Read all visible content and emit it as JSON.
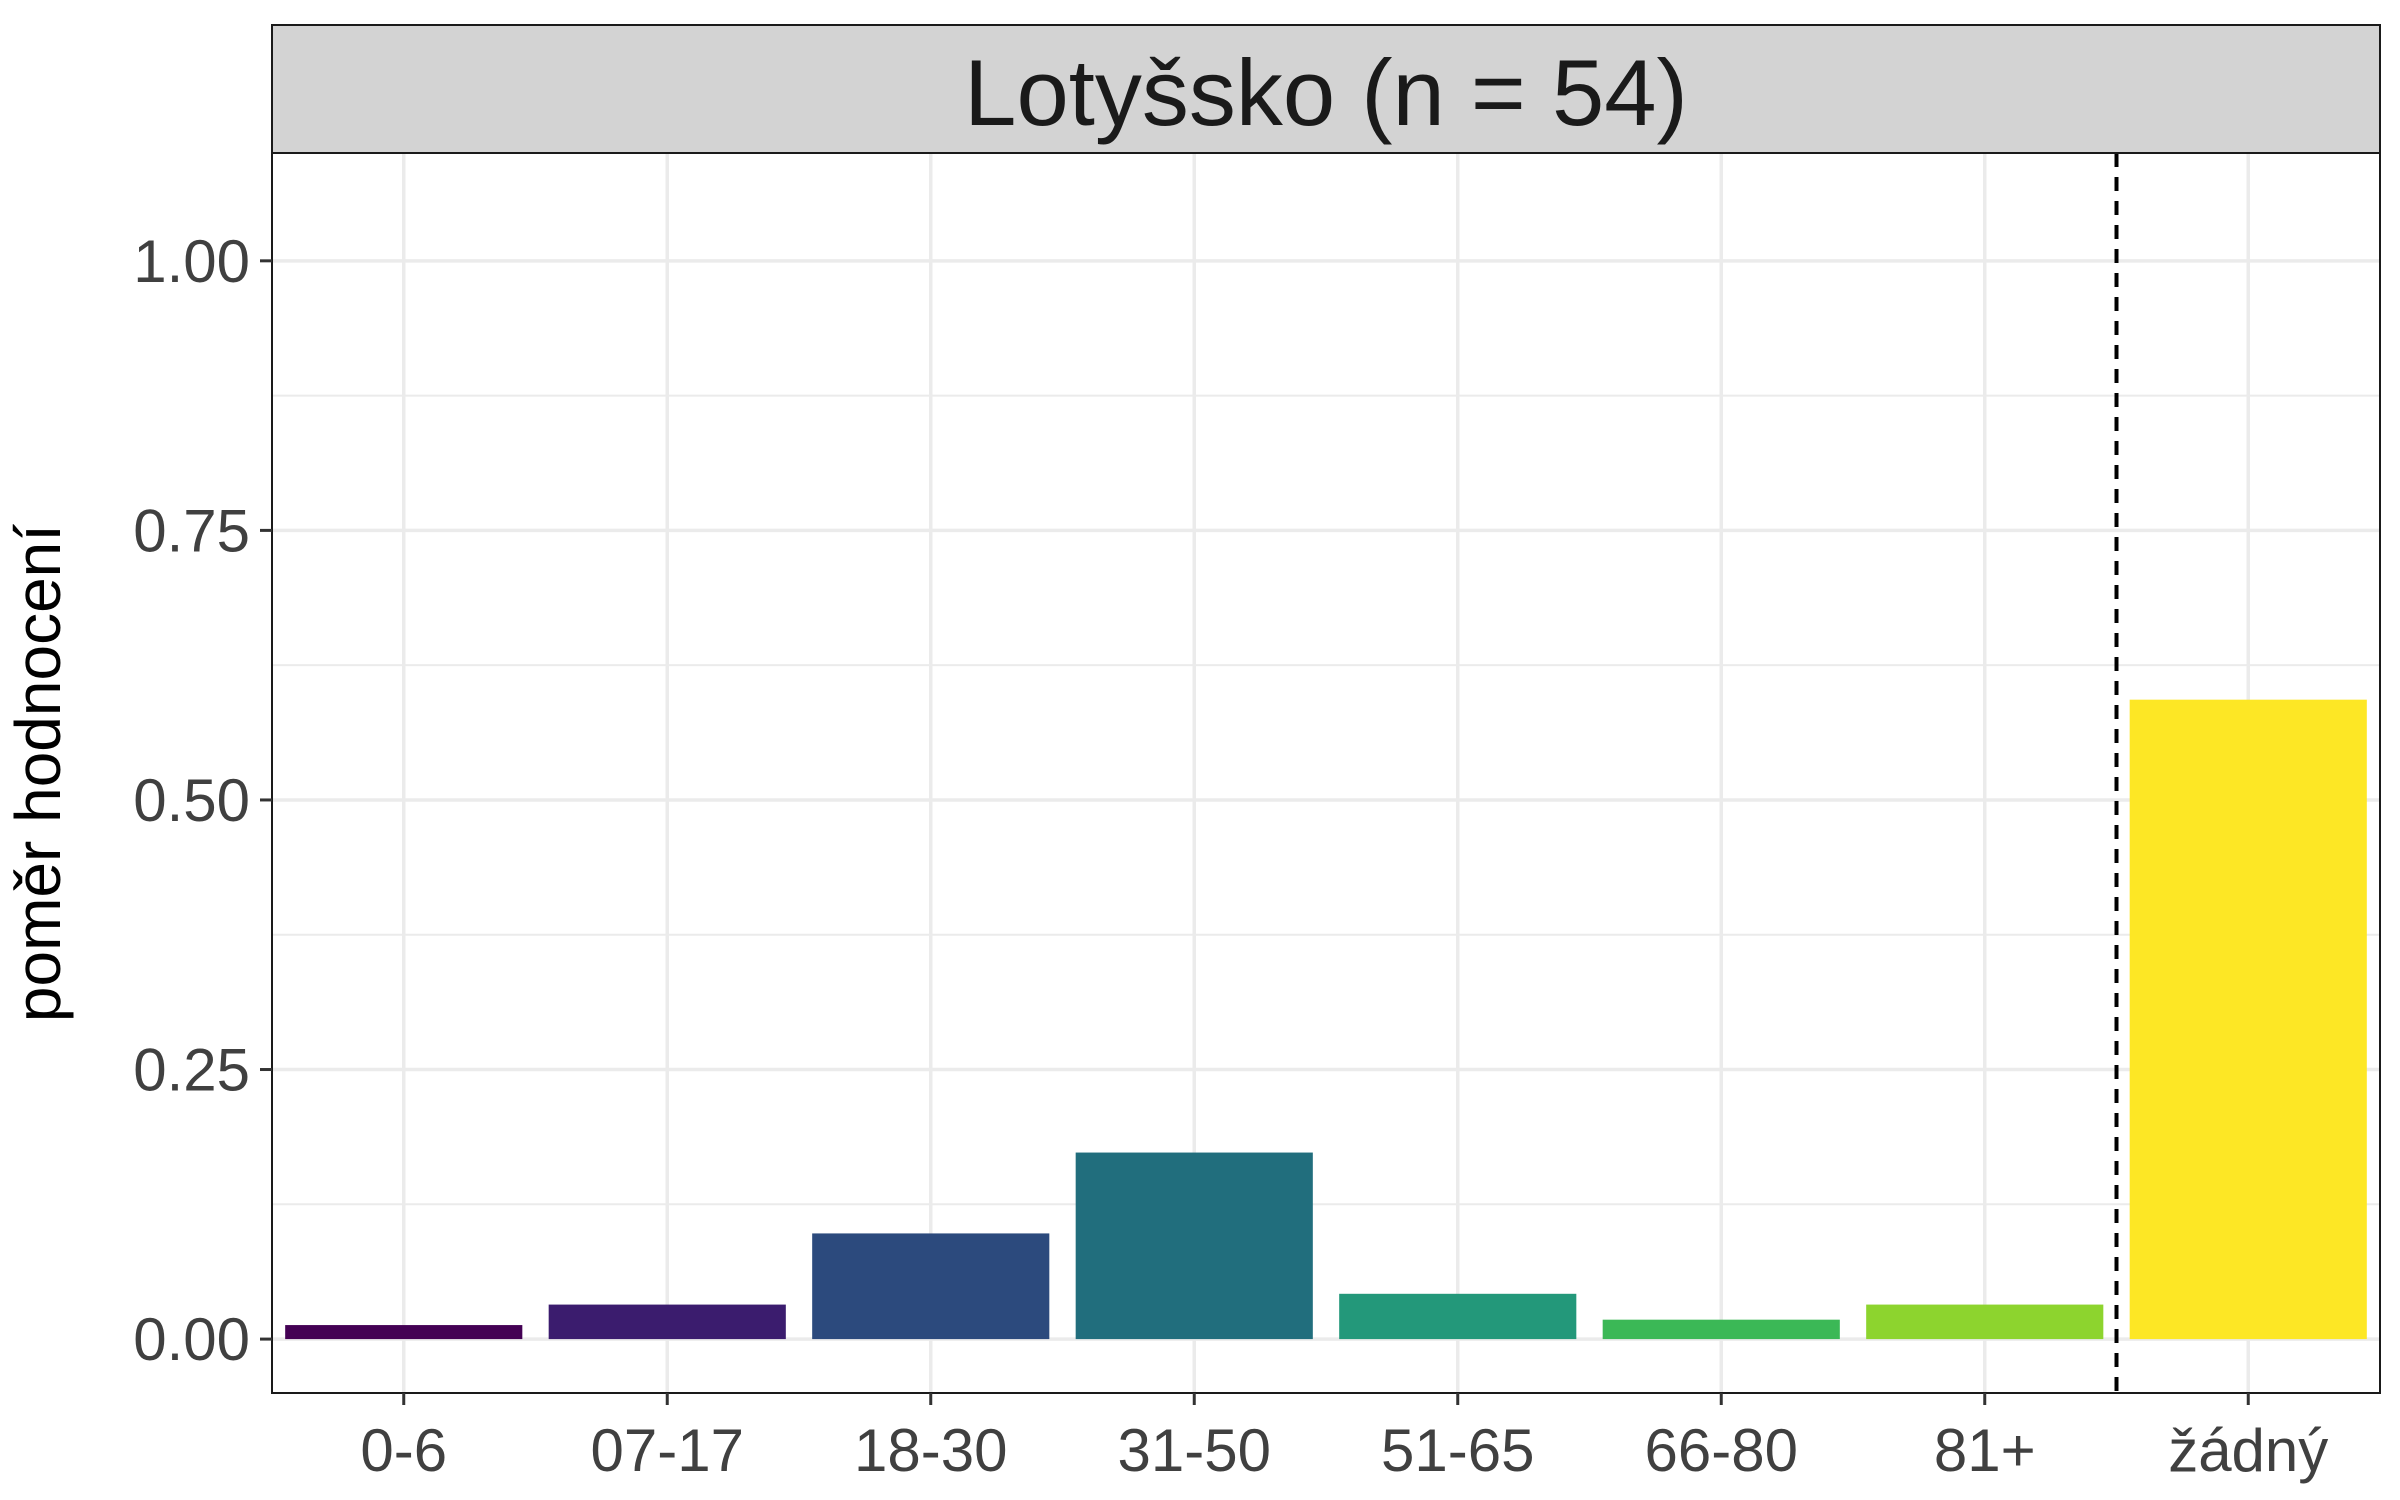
{
  "chart_data": {
    "type": "bar",
    "title": "Lotyšsko (n = 54)",
    "xlabel": "",
    "ylabel": "poměr hodnocení",
    "categories": [
      "0-6",
      "07-17",
      "18-30",
      "31-50",
      "51-65",
      "66-80",
      "81+",
      "žádný"
    ],
    "values": [
      0.013,
      0.032,
      0.098,
      0.173,
      0.042,
      0.018,
      0.032,
      0.593
    ],
    "colors": [
      "#440154",
      "#3B1C6E",
      "#2C4A7D",
      "#216E7D",
      "#23987A",
      "#3BB856",
      "#8DD42E",
      "#FDE725"
    ],
    "ylim": [
      -0.05,
      1.1
    ],
    "yticks": [
      0,
      0.25,
      0.5,
      0.75,
      1
    ],
    "ytick_labels": [
      "0.00",
      "0.25",
      "0.50",
      "0.75",
      "1.00"
    ],
    "separator_after_index": 6,
    "separator_style": "dashed",
    "grid": true,
    "legend": "none",
    "strip_color": "#d3d3d3",
    "grid_color": "#ebebeb"
  }
}
